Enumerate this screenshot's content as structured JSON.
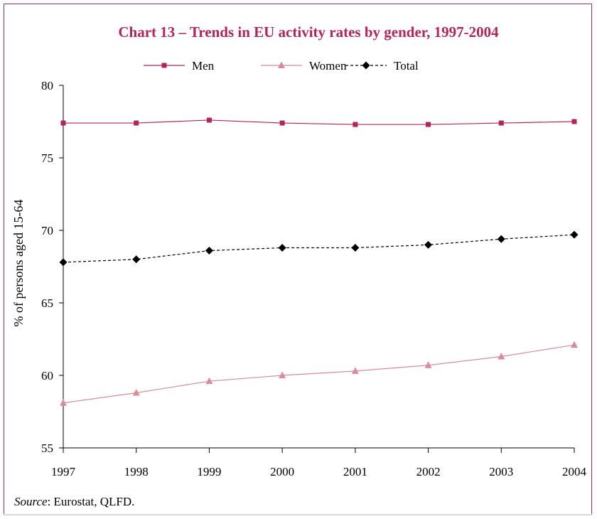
{
  "chart_data": {
    "type": "line",
    "title": "Chart 13 – Trends in EU activity rates by gender, 1997-2004",
    "ylabel": "% of persons aged 15-64",
    "xlabel": "",
    "categories": [
      "1997",
      "1998",
      "1999",
      "2000",
      "2001",
      "2002",
      "2003",
      "2004"
    ],
    "ylim": [
      55,
      80
    ],
    "yticks": [
      "55",
      "60",
      "65",
      "70",
      "75",
      "80"
    ],
    "legend_position": "top",
    "grid": false,
    "series": [
      {
        "name": "Men",
        "color": "#b3245c",
        "marker": "square",
        "dash": "solid",
        "values": [
          77.4,
          77.4,
          77.6,
          77.4,
          77.3,
          77.3,
          77.4,
          77.5
        ]
      },
      {
        "name": "Women",
        "color": "#d88c9a",
        "marker": "triangle",
        "dash": "solid",
        "values": [
          58.1,
          58.8,
          59.6,
          60.0,
          60.3,
          60.7,
          61.3,
          62.1
        ]
      },
      {
        "name": "Total",
        "color": "#000000",
        "marker": "diamond",
        "dash": "dashed",
        "values": [
          67.8,
          68.0,
          68.6,
          68.8,
          68.8,
          69.0,
          69.4,
          69.7
        ]
      }
    ]
  },
  "source": {
    "label": "Source",
    "text": ": Eurostat, QLFD."
  }
}
